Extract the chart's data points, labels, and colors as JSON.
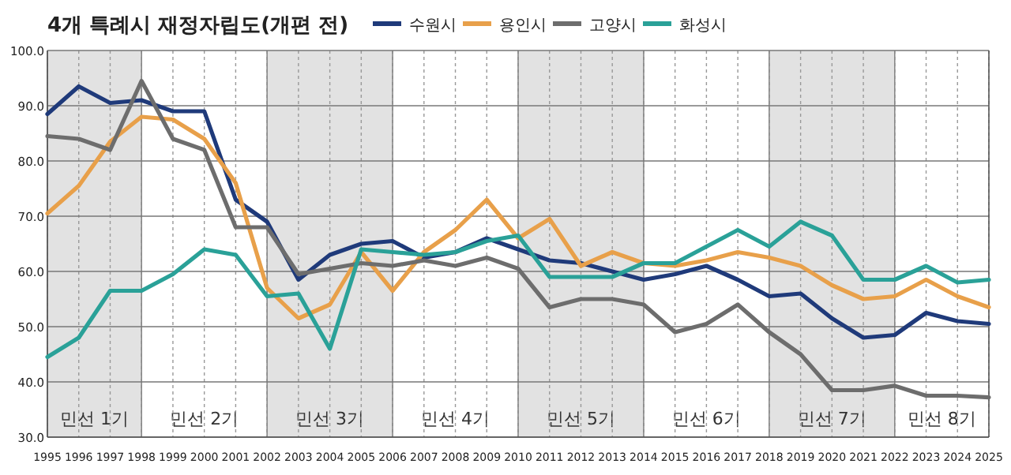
{
  "chart_data": {
    "type": "line",
    "title": "4개 특례시 재정자립도(개편 전)",
    "x": [
      1995,
      1996,
      1997,
      1998,
      1999,
      2000,
      2001,
      2002,
      2003,
      2004,
      2005,
      2006,
      2007,
      2008,
      2009,
      2010,
      2011,
      2012,
      2013,
      2014,
      2015,
      2016,
      2017,
      2018,
      2019,
      2020,
      2021,
      2022,
      2023,
      2024,
      2025
    ],
    "series": [
      {
        "name": "수원시",
        "color": "#1f3a7a",
        "values": [
          88.5,
          93.5,
          90.5,
          91,
          89,
          89,
          73,
          69,
          58.5,
          63,
          65,
          65.5,
          62.5,
          63.5,
          66,
          64,
          62,
          61.5,
          60,
          58.5,
          59.5,
          61,
          58.5,
          55.5,
          56,
          51.5,
          48,
          48.5,
          52.5,
          51,
          50.5
        ]
      },
      {
        "name": "용인시",
        "color": "#e8a04a",
        "values": [
          70.5,
          75.5,
          83.5,
          88,
          87.5,
          84,
          76,
          57,
          51.5,
          54,
          63.5,
          56.5,
          63.5,
          67.5,
          73,
          66,
          69.5,
          61,
          63.5,
          61.5,
          61,
          62,
          63.5,
          62.5,
          61,
          57.5,
          55,
          55.5,
          58.5,
          55.5,
          53.5
        ]
      },
      {
        "name": "고양시",
        "color": "#6d6d6d",
        "values": [
          84.5,
          84,
          82,
          94.5,
          84,
          82,
          68,
          68,
          59.5,
          60.5,
          61.5,
          61,
          62,
          61,
          62.5,
          60.5,
          53.5,
          55,
          55,
          54,
          49,
          50.5,
          54,
          49,
          45,
          38.5,
          38.5,
          39.3,
          37.5,
          37.5,
          37.2
        ]
      },
      {
        "name": "화성시",
        "color": "#2aa198",
        "values": [
          44.5,
          48,
          56.5,
          56.5,
          59.5,
          64,
          63,
          55.5,
          56,
          46,
          64,
          63.5,
          63,
          63.5,
          65.5,
          66.5,
          59,
          59,
          59,
          61.5,
          61.5,
          64.5,
          67.5,
          64.5,
          69,
          66.5,
          58.5,
          58.5,
          61,
          58,
          58.5
        ]
      }
    ],
    "xlim": [
      1995,
      2025
    ],
    "ylim": [
      30,
      100
    ],
    "xticks": [
      1995,
      1996,
      1997,
      1998,
      1999,
      2000,
      2001,
      2002,
      2003,
      2004,
      2005,
      2006,
      2007,
      2008,
      2009,
      2010,
      2011,
      2012,
      2013,
      2014,
      2015,
      2016,
      2017,
      2018,
      2019,
      2020,
      2021,
      2022,
      2023,
      2024,
      2025
    ],
    "yticks": [
      {
        "value": 30,
        "label": "30.0"
      },
      {
        "value": 40,
        "label": "40.0"
      },
      {
        "value": 50,
        "label": "50.0"
      },
      {
        "value": 60,
        "label": "60.0"
      },
      {
        "value": 70,
        "label": "70.0"
      },
      {
        "value": 80,
        "label": "80.0"
      },
      {
        "value": 90,
        "label": "90.0"
      },
      {
        "value": 100,
        "label": "100.0"
      }
    ],
    "grid": true,
    "legend": "top right",
    "bands": [
      {
        "axis": "x",
        "from": 1995,
        "to": 1998,
        "label": "민선 1기",
        "color": "#e2e2e2"
      },
      {
        "axis": "x",
        "from": 2002,
        "to": 2006,
        "label": "민선 3기",
        "color": "#e2e2e2"
      },
      {
        "axis": "x",
        "from": 2010,
        "to": 2014,
        "label": "민선 5기",
        "color": "#e2e2e2"
      },
      {
        "axis": "x",
        "from": 2018,
        "to": 2022,
        "label": "민선 7기",
        "color": "#e2e2e2"
      }
    ],
    "annotations": [
      "민선 2기",
      "민선 4기",
      "민선 6기",
      "민선 8기"
    ]
  }
}
